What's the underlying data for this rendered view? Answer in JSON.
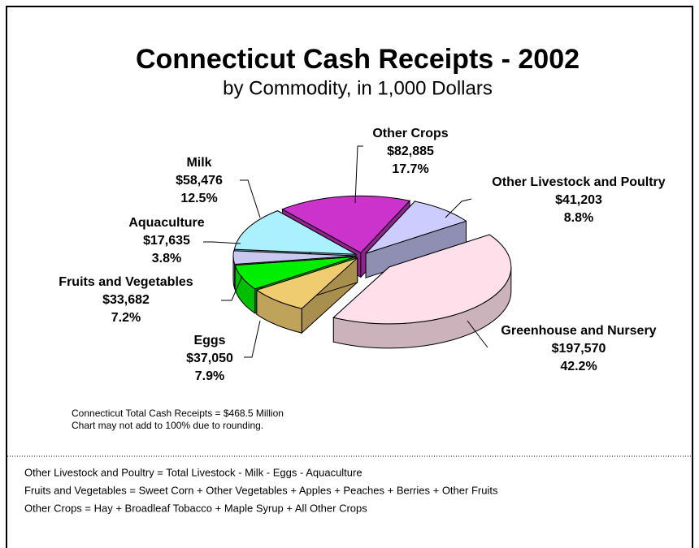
{
  "chart_data": {
    "type": "pie",
    "title": "Connecticut Cash Receipts - 2002",
    "subtitle": "by Commodity, in 1,000 Dollars",
    "categories": [
      "Other Crops",
      "Other Livestock and Poultry",
      "Greenhouse and Nursery",
      "Eggs",
      "Fruits and Vegetables",
      "Aquaculture",
      "Milk"
    ],
    "values": [
      82885,
      41203,
      197570,
      37050,
      33682,
      17635,
      58476
    ],
    "value_labels": [
      "$82,885",
      "$41,203",
      "$197,570",
      "$37,050",
      "$33,682",
      "$17,635",
      "$58,476"
    ],
    "percentages": [
      17.7,
      8.8,
      42.2,
      7.9,
      7.2,
      3.8,
      12.5
    ],
    "percentage_labels": [
      "17.7%",
      "8.8%",
      "42.2%",
      "7.9%",
      "7.2%",
      "3.8%",
      "12.5%"
    ],
    "colors": [
      "#cc33cc",
      "#ccccff",
      "#ffe0ea",
      "#f0cc70",
      "#00ee00",
      "#c8c8f0",
      "#aaf0ff"
    ],
    "notes": [
      "Connecticut Total Cash Receipts = $468.5 Million",
      "Chart may not add to 100% due to rounding."
    ]
  },
  "footnotes": [
    "Other Livestock and Poultry = Total Livestock - Milk - Eggs - Aquaculture",
    "Fruits and Vegetables = Sweet Corn + Other Vegetables + Apples + Peaches + Berries + Other Fruits",
    "Other Crops = Hay + Broadleaf Tobacco + Maple Syrup  + All Other Crops"
  ]
}
